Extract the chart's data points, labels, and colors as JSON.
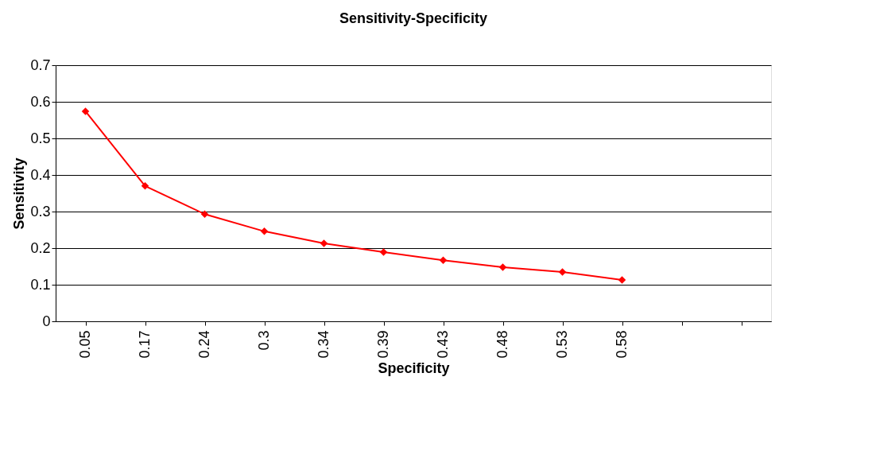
{
  "chart_data": {
    "type": "line",
    "title": "Sensitivity-Specificity",
    "xlabel": "Specificity",
    "ylabel": "Sensitivity",
    "categories": [
      "0.05",
      "0.17",
      "0.24",
      "0.3",
      "0.34",
      "0.39",
      "0.43",
      "0.48",
      "0.53",
      "0.58",
      null,
      null
    ],
    "series": [
      {
        "color": "#ff0000",
        "values": [
          0.574,
          0.37,
          0.293,
          0.246,
          0.213,
          0.189,
          0.167,
          0.148,
          0.135,
          0.113,
          null,
          null
        ]
      }
    ],
    "ylim": [
      0,
      0.7
    ],
    "yticks": [
      0,
      0.1,
      0.2,
      0.3,
      0.4,
      0.5,
      0.6,
      0.7
    ],
    "grid": "y",
    "marker": "diamond",
    "line_style": "solid"
  }
}
